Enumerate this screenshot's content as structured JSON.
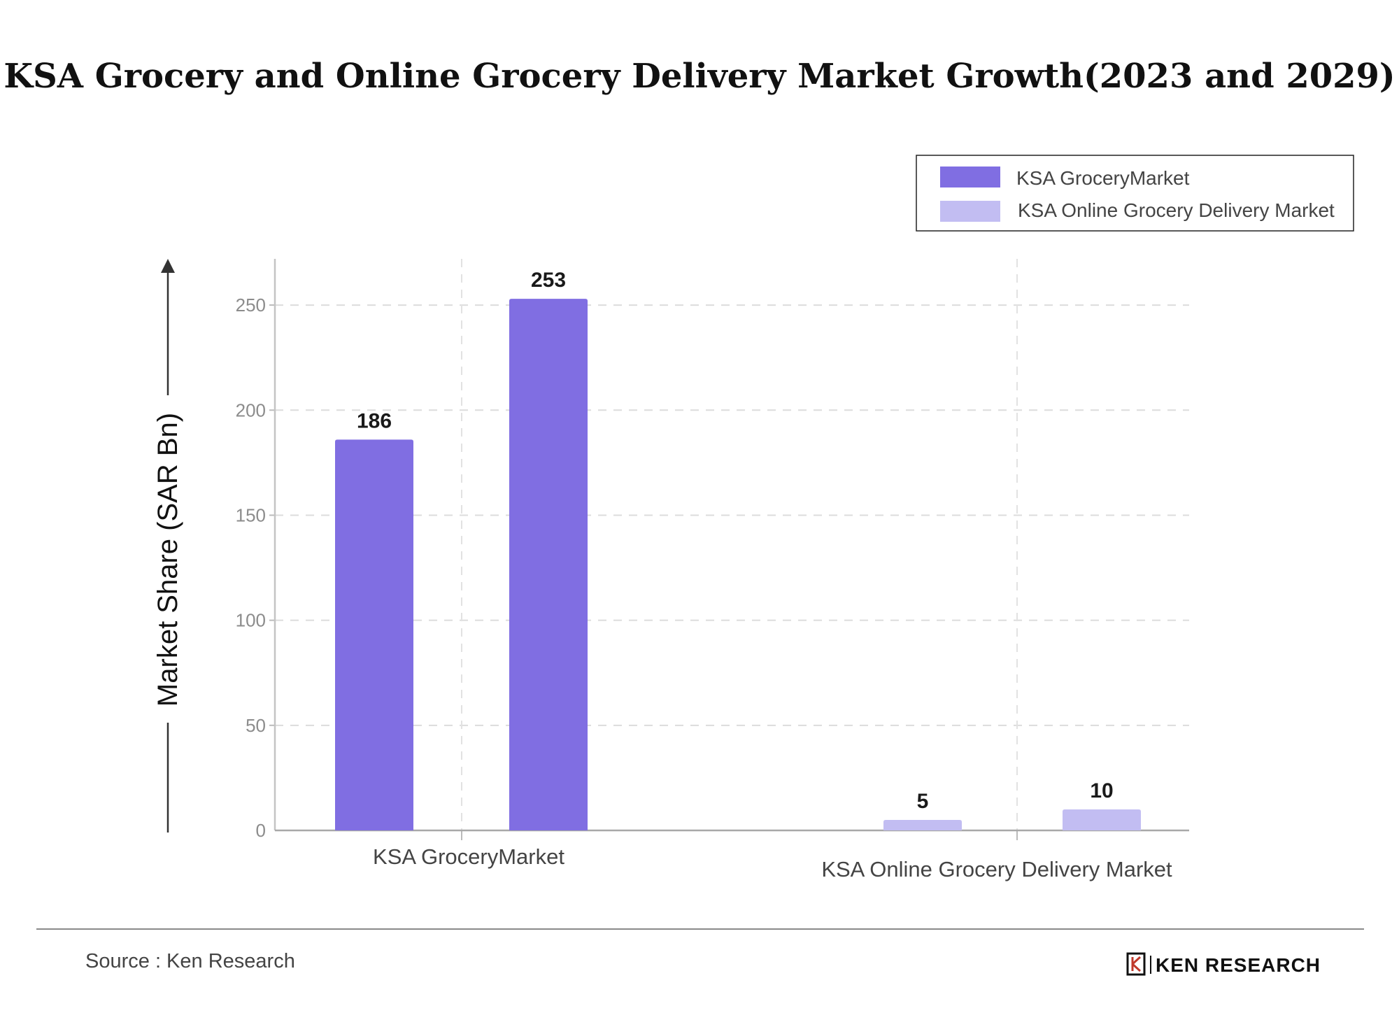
{
  "chart_data": {
    "type": "bar",
    "title": "KSA Grocery and Online Grocery Delivery Market Growth(2023 and 2029)",
    "ylabel": "Market Share (SAR Bn)",
    "xlabel": "",
    "ylim": [
      0,
      272
    ],
    "yticks": [
      0,
      50,
      100,
      150,
      200,
      250
    ],
    "grid": true,
    "legend_position": "top-right",
    "groups": [
      {
        "label": "KSA GroceryMarket",
        "series_index": 0,
        "bars": [
          {
            "value": 186,
            "label": "186"
          },
          {
            "value": 253,
            "label": "253"
          }
        ]
      },
      {
        "label": "KSA Online Grocery Delivery Market",
        "series_index": 1,
        "bars": [
          {
            "value": 5,
            "label": "5"
          },
          {
            "value": 10,
            "label": "10"
          }
        ]
      }
    ],
    "series": [
      {
        "name": "KSA GroceryMarket",
        "color": "#806ee2"
      },
      {
        "name": "KSA Online Grocery Delivery Market",
        "color": "#c2bdf2"
      }
    ]
  },
  "footer": {
    "source": "Source : Ken Research",
    "brand": "KEN RESEARCH",
    "logo_icon": "ken-research-logo"
  }
}
